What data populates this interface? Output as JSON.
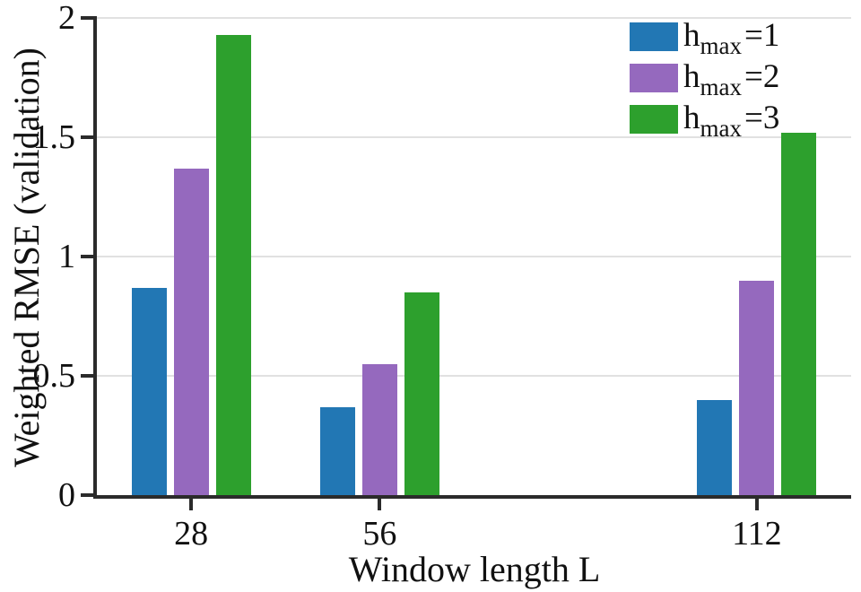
{
  "colors": {
    "background": "#ffffff",
    "axis": "#2b2b2b",
    "grid": "#e1e1e1",
    "text": "#111111",
    "bar_blue": "#2277b4",
    "bar_purple": "#9569be",
    "bar_green": "#2da02d"
  },
  "chart_data": {
    "type": "bar",
    "title": "",
    "xlabel": "Window length L",
    "ylabel": "Weighted RMSE (validation)",
    "categories": [
      "28",
      "56",
      "112"
    ],
    "x_values": [
      28,
      56,
      112
    ],
    "x_scale": "linear",
    "xlim": [
      14,
      126
    ],
    "ylim": [
      0,
      2
    ],
    "ytick_values": [
      0,
      0.5,
      1,
      1.5,
      2
    ],
    "ytick_labels": [
      "0",
      "0.5",
      "1",
      "1.5",
      "2"
    ],
    "grid": "horizontal-major",
    "legend_position": "upper-right",
    "legend_frame": false,
    "series": [
      {
        "name": "hmax1",
        "legend": {
          "base": "h",
          "sub": "max",
          "rest": "=1"
        },
        "color": "#2277b4",
        "values": [
          0.87,
          0.37,
          0.4
        ]
      },
      {
        "name": "hmax2",
        "legend": {
          "base": "h",
          "sub": "max",
          "rest": "=2"
        },
        "color": "#9569be",
        "values": [
          1.37,
          0.55,
          0.9
        ]
      },
      {
        "name": "hmax3",
        "legend": {
          "base": "h",
          "sub": "max",
          "rest": "=3"
        },
        "color": "#2da02d",
        "values": [
          1.93,
          0.85,
          1.52
        ]
      }
    ]
  }
}
